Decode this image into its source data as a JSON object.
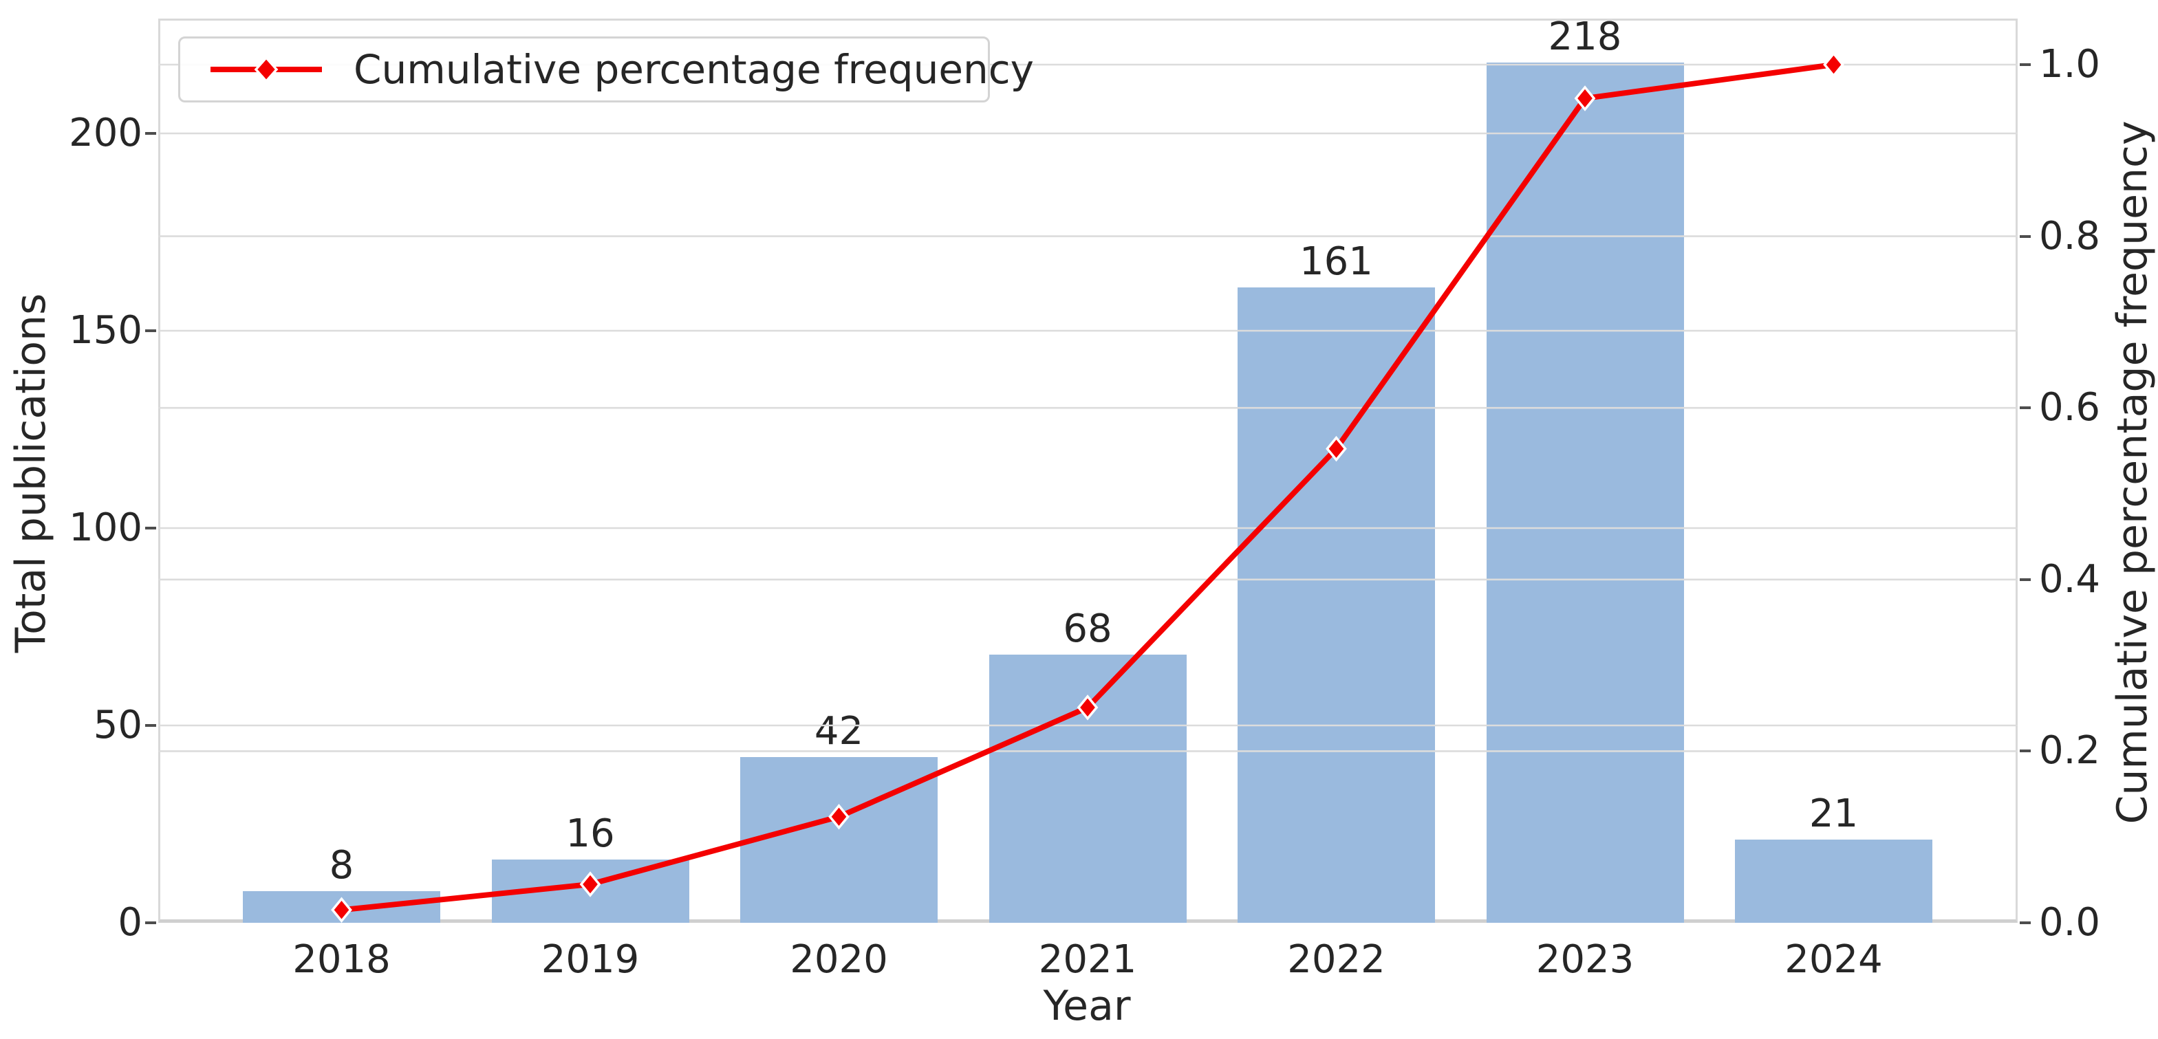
{
  "figure": {
    "xlabel": "Year",
    "ylabel_left": "Total publications",
    "ylabel_right": "Cumulative percentage frequency",
    "legend_label": "Cumulative percentage frequency"
  },
  "chart_data": {
    "type": "bar",
    "categories": [
      "2018",
      "2019",
      "2020",
      "2021",
      "2022",
      "2023",
      "2024"
    ],
    "series": [
      {
        "name": "Total publications",
        "type": "bar",
        "axis": "left",
        "values": [
          8,
          16,
          42,
          68,
          161,
          218,
          21
        ],
        "color": "#9abade"
      },
      {
        "name": "Cumulative percentage frequency",
        "type": "line",
        "axis": "right",
        "marker": "diamond",
        "values": [
          0.015,
          0.0449,
          0.1236,
          0.2509,
          0.5524,
          0.9607,
          1.0
        ],
        "color": "#f40000",
        "marker_edge_color": "#ffffff"
      }
    ],
    "bar_value_labels": [
      "8",
      "16",
      "42",
      "68",
      "161",
      "218",
      "21"
    ],
    "title": "",
    "xlabel": "Year",
    "ylabel": "Total publications",
    "ylabel2": "Cumulative percentage frequency",
    "yticks_left": {
      "labels": [
        "0",
        "50",
        "100",
        "150",
        "200"
      ],
      "values": [
        0,
        50,
        100,
        150,
        200
      ]
    },
    "yticks_right": {
      "labels": [
        "0.0",
        "0.2",
        "0.4",
        "0.6",
        "0.8",
        "1.0"
      ],
      "values": [
        0.0,
        0.2,
        0.4,
        0.6,
        0.8,
        1.0
      ]
    },
    "ylim_left": [
      0,
      229
    ],
    "ylim_right": [
      0,
      1.055
    ],
    "grid": true,
    "grid_color": "#dcdcdc",
    "legend_position": "upper left",
    "background_color": "#ffffff",
    "text_color": "#262626"
  }
}
